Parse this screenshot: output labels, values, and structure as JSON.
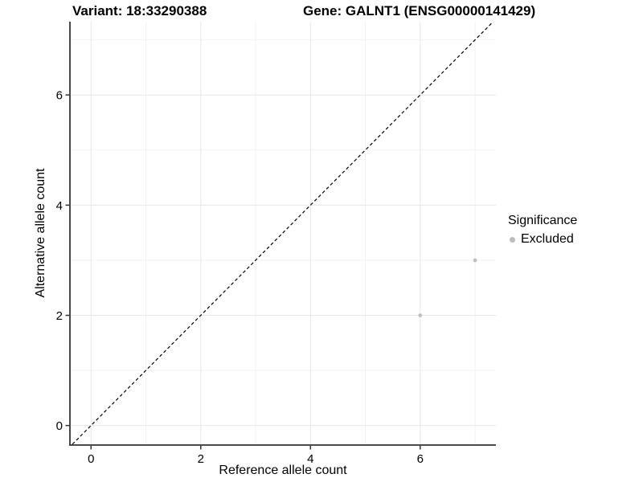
{
  "titles": {
    "left": "Variant: 18:33290388",
    "right": "Gene: GALNT1 (ENSG00000141429)"
  },
  "chart_data": {
    "type": "scatter",
    "xlabel": "Reference allele count",
    "ylabel": "Alternative allele count",
    "xlim": [
      -0.37,
      7.38
    ],
    "ylim": [
      -0.34,
      7.33
    ],
    "x_major_ticks": [
      0,
      2,
      4,
      6
    ],
    "x_minor_ticks": [
      1,
      3,
      5,
      7
    ],
    "y_major_ticks": [
      0,
      2,
      4,
      6
    ],
    "y_minor_ticks": [
      1,
      3,
      5,
      7
    ],
    "grid": true,
    "identity_line": {
      "slope": 1,
      "intercept": 0,
      "style": "dashed",
      "color": "#000000"
    },
    "series": [
      {
        "name": "Excluded",
        "color": "#bdbdbd",
        "point_radius": 2.3,
        "points": [
          {
            "x": 6,
            "y": 2
          },
          {
            "x": 7,
            "y": 3
          }
        ]
      }
    ],
    "legend": {
      "title": "Significance",
      "position": "right",
      "entries": [
        {
          "label": "Excluded",
          "color": "#bdbdbd"
        }
      ]
    },
    "colors": {
      "major_grid": "#e7e7e7",
      "minor_grid": "#f2f2f2",
      "axis_line": "#333333",
      "tick_mark": "#333333",
      "point": "#bdbdbd"
    }
  }
}
